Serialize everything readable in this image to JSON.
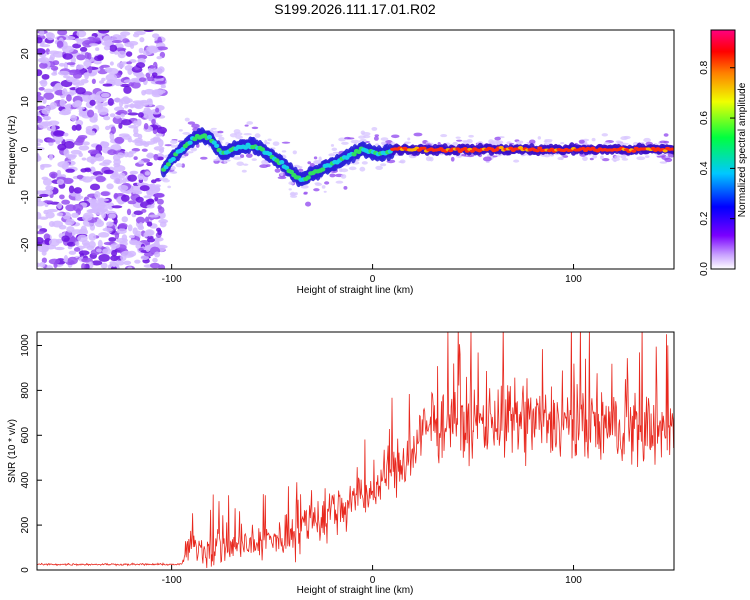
{
  "title": "S199.2026.111.17.01.R02",
  "chart_data": [
    {
      "type": "heatmap",
      "name": "spectrogram",
      "xlabel": "Height of straight line (km)",
      "ylabel": "Frequency (Hz)",
      "xlim": [
        -167,
        150
      ],
      "ylim": [
        -25,
        25
      ],
      "xticks": [
        -100,
        0,
        100
      ],
      "yticks": [
        20,
        10,
        0,
        -10,
        -20
      ],
      "ridge": {
        "description_points_x": [
          -105,
          -100,
          -95,
          -90,
          -85,
          -80,
          -75,
          -70,
          -65,
          -60,
          -55,
          -50,
          -45,
          -40,
          -35,
          -30,
          -25,
          -20,
          -15,
          -10,
          -5,
          0,
          5,
          10,
          20,
          40,
          60,
          80,
          100,
          110,
          120,
          130,
          140,
          150
        ],
        "description_points_y": [
          -5,
          -2,
          0,
          2,
          3,
          2,
          -1,
          0,
          0.5,
          1,
          0,
          -1.5,
          -3,
          -5,
          -6.5,
          -5,
          -4,
          -3,
          -2,
          -1,
          0,
          -0.5,
          -1,
          0,
          0,
          0,
          0,
          0,
          0,
          0,
          0,
          0,
          0,
          0
        ]
      },
      "colorbar": {
        "label": "Normalized spectral amplitude",
        "range": [
          0,
          0.95
        ],
        "ticks": [
          0.0,
          0.2,
          0.4,
          0.6,
          0.8
        ]
      }
    },
    {
      "type": "line",
      "name": "snr",
      "xlabel": "Height of straight line (km)",
      "ylabel": "SNR (10 * v/v)",
      "xlim": [
        -167,
        150
      ],
      "ylim": [
        0,
        1060
      ],
      "xticks": [
        -100,
        0,
        100
      ],
      "yticks": [
        0,
        200,
        400,
        600,
        800,
        1000
      ],
      "color": "#e8281e",
      "trend": {
        "x": [
          -167,
          -120,
          -95,
          -93,
          -80,
          -60,
          -45,
          -35,
          -20,
          -10,
          0,
          10,
          20,
          25,
          30,
          40,
          60,
          80,
          100,
          120,
          140,
          150
        ],
        "mean": [
          25,
          25,
          25,
          90,
          100,
          110,
          140,
          200,
          260,
          310,
          350,
          430,
          520,
          600,
          650,
          660,
          665,
          660,
          650,
          640,
          630,
          620
        ],
        "amplitude": [
          5,
          5,
          5,
          80,
          100,
          90,
          110,
          140,
          150,
          130,
          120,
          150,
          170,
          180,
          200,
          200,
          200,
          200,
          210,
          200,
          200,
          200
        ]
      }
    }
  ]
}
